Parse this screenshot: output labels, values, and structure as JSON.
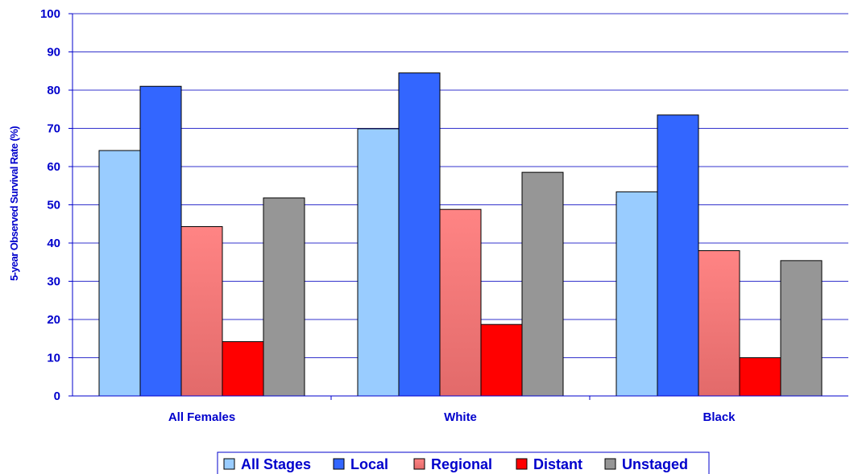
{
  "chart_data": {
    "type": "bar",
    "ylabel": "5-year Observed Survival Rate (%)",
    "xlabel": "",
    "ylim": [
      0,
      100
    ],
    "yticks": [
      0,
      10,
      20,
      30,
      40,
      50,
      60,
      70,
      80,
      90,
      100
    ],
    "categories": [
      "All Females",
      "White",
      "Black"
    ],
    "series": [
      {
        "name": "All Stages",
        "color": "#99CCFF",
        "values": [
          64.2,
          69.9,
          53.4
        ]
      },
      {
        "name": "Local",
        "color": "#3366FF",
        "values": [
          81.0,
          84.5,
          73.5
        ]
      },
      {
        "name": "Regional",
        "color": "#FF8080",
        "values": [
          44.3,
          48.8,
          38.0
        ]
      },
      {
        "name": "Distant",
        "color": "#FF0000",
        "values": [
          14.2,
          18.7,
          10.0
        ]
      },
      {
        "name": "Unstaged",
        "color": "#969696",
        "values": [
          51.8,
          58.5,
          35.4
        ]
      }
    ],
    "grid": true,
    "gridline_color": "#3333CC",
    "text_color": "#0000CC",
    "legend_position": "bottom"
  }
}
